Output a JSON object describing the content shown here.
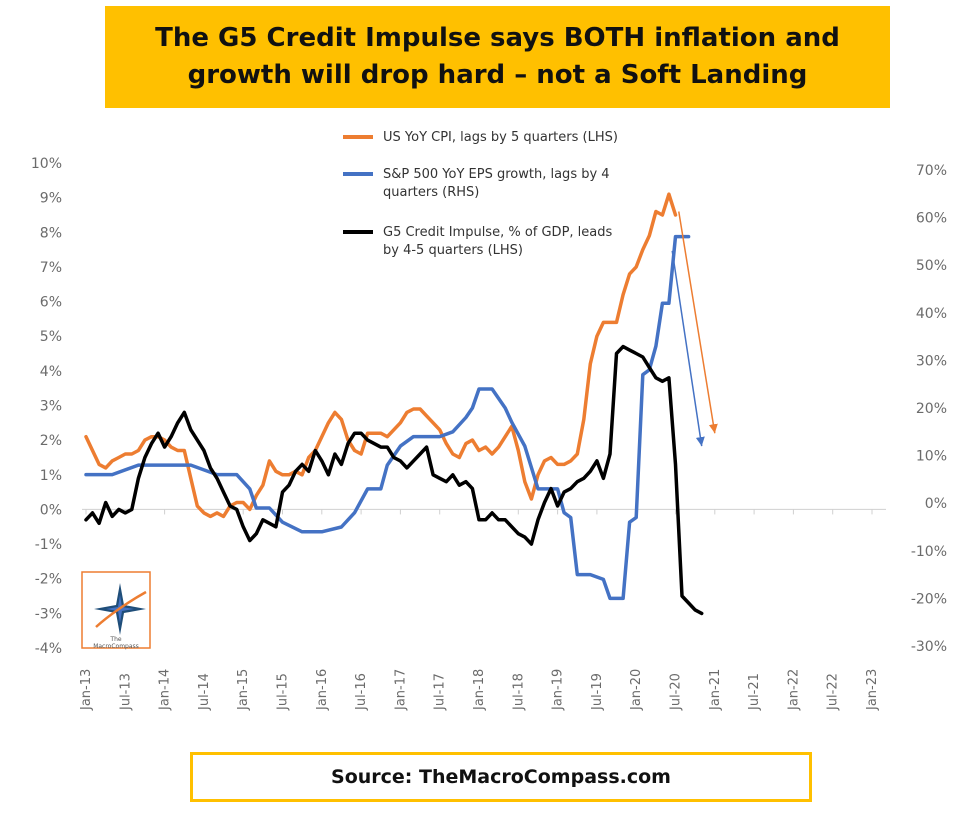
{
  "title": "The G5 Credit Impulse says BOTH inflation and growth will drop hard – not a Soft Landing",
  "source": "Source: TheMacroCompass.com",
  "logo": {
    "small_text_1": "The",
    "small_text_2": "MacroCompass"
  },
  "chart_data": {
    "type": "line",
    "x_labels": [
      "Jan-13",
      "Jul-13",
      "Jan-14",
      "Jul-14",
      "Jan-15",
      "Jul-15",
      "Jan-16",
      "Jul-16",
      "Jan-17",
      "Jul-17",
      "Jan-18",
      "Jul-18",
      "Jan-19",
      "Jul-19",
      "Jan-20",
      "Jul-20",
      "Jan-21",
      "Jul-21",
      "Jan-22",
      "Jul-22",
      "Jan-23"
    ],
    "y_left": {
      "min": -4,
      "max": 10,
      "step": 1,
      "labels": [
        "-4%",
        "-3%",
        "-2%",
        "-1%",
        "0%",
        "1%",
        "2%",
        "3%",
        "4%",
        "5%",
        "6%",
        "7%",
        "8%",
        "9%",
        "10%"
      ]
    },
    "y_right": {
      "min": -30,
      "max": 70,
      "step": 10,
      "labels": [
        "-30%",
        "-20%",
        "-10%",
        "0%",
        "10%",
        "20%",
        "30%",
        "40%",
        "50%",
        "60%",
        "70%"
      ]
    },
    "grid": false,
    "legend_position": "top-center",
    "series": [
      {
        "name": "US YoY CPI, lags by 5 quarters (LHS)",
        "axis": "left",
        "color": "#ed7d31",
        "points": [
          [
            0,
            2.1
          ],
          [
            1,
            1.7
          ],
          [
            2,
            1.3
          ],
          [
            3,
            1.2
          ],
          [
            4,
            1.4
          ],
          [
            5,
            1.5
          ],
          [
            6,
            1.6
          ],
          [
            7,
            1.6
          ],
          [
            8,
            1.7
          ],
          [
            9,
            2.0
          ],
          [
            10,
            2.1
          ],
          [
            11,
            2.1
          ],
          [
            12,
            2.0
          ],
          [
            13,
            1.8
          ],
          [
            14,
            1.7
          ],
          [
            15,
            1.7
          ],
          [
            16,
            0.9
          ],
          [
            17,
            0.1
          ],
          [
            18,
            -0.1
          ],
          [
            19,
            -0.2
          ],
          [
            20,
            -0.1
          ],
          [
            21,
            -0.2
          ],
          [
            22,
            0.1
          ],
          [
            23,
            0.2
          ],
          [
            24,
            0.2
          ],
          [
            25,
            0.0
          ],
          [
            26,
            0.4
          ],
          [
            27,
            0.7
          ],
          [
            28,
            1.4
          ],
          [
            29,
            1.1
          ],
          [
            30,
            1.0
          ],
          [
            31,
            1.0
          ],
          [
            32,
            1.1
          ],
          [
            33,
            1.0
          ],
          [
            34,
            1.5
          ],
          [
            35,
            1.7
          ],
          [
            36,
            2.1
          ],
          [
            37,
            2.5
          ],
          [
            38,
            2.8
          ],
          [
            39,
            2.6
          ],
          [
            40,
            2.0
          ],
          [
            41,
            1.7
          ],
          [
            42,
            1.6
          ],
          [
            43,
            2.2
          ],
          [
            44,
            2.2
          ],
          [
            45,
            2.2
          ],
          [
            46,
            2.1
          ],
          [
            47,
            2.3
          ],
          [
            48,
            2.5
          ],
          [
            49,
            2.8
          ],
          [
            50,
            2.9
          ],
          [
            51,
            2.9
          ],
          [
            52,
            2.7
          ],
          [
            53,
            2.5
          ],
          [
            54,
            2.3
          ],
          [
            55,
            1.9
          ],
          [
            56,
            1.6
          ],
          [
            57,
            1.5
          ],
          [
            58,
            1.9
          ],
          [
            59,
            2.0
          ],
          [
            60,
            1.7
          ],
          [
            61,
            1.8
          ],
          [
            62,
            1.6
          ],
          [
            63,
            1.8
          ],
          [
            64,
            2.1
          ],
          [
            65,
            2.4
          ],
          [
            66,
            1.7
          ],
          [
            67,
            0.8
          ],
          [
            68,
            0.3
          ],
          [
            69,
            1.0
          ],
          [
            70,
            1.4
          ],
          [
            71,
            1.5
          ],
          [
            72,
            1.3
          ],
          [
            73,
            1.3
          ],
          [
            74,
            1.4
          ],
          [
            75,
            1.6
          ],
          [
            76,
            2.6
          ],
          [
            77,
            4.2
          ],
          [
            78,
            5.0
          ],
          [
            79,
            5.4
          ],
          [
            80,
            5.4
          ],
          [
            81,
            5.4
          ],
          [
            82,
            6.2
          ],
          [
            83,
            6.8
          ],
          [
            84,
            7.0
          ],
          [
            85,
            7.5
          ],
          [
            86,
            7.9
          ],
          [
            87,
            8.6
          ],
          [
            88,
            8.5
          ],
          [
            89,
            9.1
          ],
          [
            90,
            8.5
          ]
        ]
      },
      {
        "name": "S&P 500 YoY EPS growth, lags by 4 quarters (RHS)",
        "axis": "right",
        "color": "#4472c4",
        "points": [
          [
            0,
            6
          ],
          [
            4,
            6
          ],
          [
            8,
            8
          ],
          [
            12,
            8
          ],
          [
            16,
            8
          ],
          [
            20,
            6
          ],
          [
            23,
            6
          ],
          [
            25,
            3
          ],
          [
            26,
            -1
          ],
          [
            28,
            -1
          ],
          [
            30,
            -4
          ],
          [
            33,
            -6
          ],
          [
            36,
            -6
          ],
          [
            39,
            -5
          ],
          [
            41,
            -2
          ],
          [
            43,
            3
          ],
          [
            45,
            3
          ],
          [
            46,
            8
          ],
          [
            48,
            12
          ],
          [
            50,
            14
          ],
          [
            52,
            14
          ],
          [
            54,
            14
          ],
          [
            56,
            15
          ],
          [
            58,
            18
          ],
          [
            59,
            20
          ],
          [
            60,
            24
          ],
          [
            62,
            24
          ],
          [
            64,
            20
          ],
          [
            65,
            17
          ],
          [
            67,
            12
          ],
          [
            69,
            3
          ],
          [
            70,
            3
          ],
          [
            72,
            3
          ],
          [
            73,
            -2
          ],
          [
            74,
            -3
          ],
          [
            75,
            -15
          ],
          [
            77,
            -15
          ],
          [
            79,
            -16
          ],
          [
            80,
            -20
          ],
          [
            82,
            -20
          ],
          [
            83,
            -4
          ],
          [
            84,
            -3
          ],
          [
            85,
            27
          ],
          [
            86,
            28
          ],
          [
            87,
            33
          ],
          [
            88,
            42
          ],
          [
            89,
            42
          ],
          [
            90,
            56
          ],
          [
            92,
            56
          ]
        ]
      },
      {
        "name": "G5 Credit Impulse, % of GDP, leads by 4-5 quarters (LHS)",
        "axis": "left",
        "color": "#000000",
        "points": [
          [
            0,
            -0.3
          ],
          [
            1,
            -0.1
          ],
          [
            2,
            -0.4
          ],
          [
            3,
            0.2
          ],
          [
            4,
            -0.2
          ],
          [
            5,
            0.0
          ],
          [
            6,
            -0.1
          ],
          [
            7,
            0.0
          ],
          [
            8,
            0.9
          ],
          [
            9,
            1.5
          ],
          [
            10,
            1.9
          ],
          [
            11,
            2.2
          ],
          [
            12,
            1.8
          ],
          [
            13,
            2.1
          ],
          [
            14,
            2.5
          ],
          [
            15,
            2.8
          ],
          [
            16,
            2.3
          ],
          [
            17,
            2.0
          ],
          [
            18,
            1.7
          ],
          [
            19,
            1.2
          ],
          [
            20,
            0.9
          ],
          [
            21,
            0.5
          ],
          [
            22,
            0.1
          ],
          [
            23,
            0.0
          ],
          [
            24,
            -0.5
          ],
          [
            25,
            -0.9
          ],
          [
            26,
            -0.7
          ],
          [
            27,
            -0.3
          ],
          [
            28,
            -0.4
          ],
          [
            29,
            -0.5
          ],
          [
            30,
            0.5
          ],
          [
            31,
            0.7
          ],
          [
            32,
            1.1
          ],
          [
            33,
            1.3
          ],
          [
            34,
            1.1
          ],
          [
            35,
            1.7
          ],
          [
            36,
            1.4
          ],
          [
            37,
            1.0
          ],
          [
            38,
            1.6
          ],
          [
            39,
            1.3
          ],
          [
            40,
            1.9
          ],
          [
            41,
            2.2
          ],
          [
            42,
            2.2
          ],
          [
            43,
            2.0
          ],
          [
            44,
            1.9
          ],
          [
            45,
            1.8
          ],
          [
            46,
            1.8
          ],
          [
            47,
            1.5
          ],
          [
            48,
            1.4
          ],
          [
            49,
            1.2
          ],
          [
            50,
            1.4
          ],
          [
            51,
            1.6
          ],
          [
            52,
            1.8
          ],
          [
            53,
            1.0
          ],
          [
            54,
            0.9
          ],
          [
            55,
            0.8
          ],
          [
            56,
            1.0
          ],
          [
            57,
            0.7
          ],
          [
            58,
            0.8
          ],
          [
            59,
            0.6
          ],
          [
            60,
            -0.3
          ],
          [
            61,
            -0.3
          ],
          [
            62,
            -0.1
          ],
          [
            63,
            -0.3
          ],
          [
            64,
            -0.3
          ],
          [
            65,
            -0.5
          ],
          [
            66,
            -0.7
          ],
          [
            67,
            -0.8
          ],
          [
            68,
            -1.0
          ],
          [
            69,
            -0.3
          ],
          [
            70,
            0.2
          ],
          [
            71,
            0.6
          ],
          [
            72,
            0.1
          ],
          [
            73,
            0.5
          ],
          [
            74,
            0.6
          ],
          [
            75,
            0.8
          ],
          [
            76,
            0.9
          ],
          [
            77,
            1.1
          ],
          [
            78,
            1.4
          ],
          [
            79,
            0.9
          ],
          [
            80,
            1.6
          ],
          [
            81,
            4.5
          ],
          [
            82,
            4.7
          ],
          [
            83,
            4.6
          ],
          [
            84,
            4.5
          ],
          [
            85,
            4.4
          ],
          [
            86,
            4.1
          ],
          [
            87,
            3.8
          ],
          [
            88,
            3.7
          ],
          [
            89,
            3.8
          ],
          [
            90,
            1.3
          ],
          [
            91,
            -2.5
          ],
          [
            92,
            -2.7
          ],
          [
            93,
            -2.9
          ],
          [
            94,
            -3.0
          ]
        ]
      }
    ],
    "annotations": [
      {
        "type": "arrow",
        "color": "#ed7d31",
        "from": [
          90.5,
          8.6
        ],
        "to": [
          96,
          2.2
        ]
      },
      {
        "type": "arrow",
        "color": "#4472c4",
        "from": [
          89.5,
          53
        ],
        "to": [
          94,
          12
        ]
      }
    ]
  }
}
